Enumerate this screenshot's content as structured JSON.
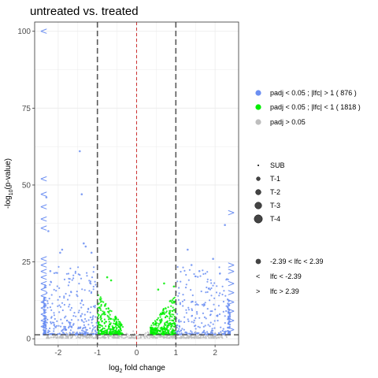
{
  "chart_data": {
    "type": "scatter",
    "title": "untreated vs. treated",
    "xlabel": "log",
    "xlabel_sub": "2",
    "xlabel_rest": " fold change",
    "ylabel": "-log",
    "ylabel_sub": "10",
    "ylabel_rest": "(p-value)",
    "xlim": [
      -2.6,
      2.6
    ],
    "ylim": [
      -2,
      103
    ],
    "x_ticks": [
      -2,
      -1,
      0,
      1,
      2
    ],
    "x_tick_labels": [
      "-2",
      "-1",
      "0",
      "1",
      "2"
    ],
    "y_ticks": [
      0,
      25,
      50,
      75,
      100
    ],
    "y_tick_labels": [
      "0",
      "25",
      "50",
      "75",
      "100"
    ],
    "grid": true,
    "vertical_lines": [
      {
        "x": -1,
        "style": "dashed",
        "color": "#595959"
      },
      {
        "x": 1,
        "style": "dashed",
        "color": "#595959"
      },
      {
        "x": 0,
        "style": "dashed",
        "color": "#cd3333"
      }
    ],
    "horizontal_lines": [
      {
        "y": 1.3,
        "style": "dashed",
        "color": "#595959"
      }
    ],
    "colors": {
      "sig_large": "#6c8ff2",
      "sig_small": "#00ee00",
      "nonsig": "#bebebe",
      "grid": "#ebebeb",
      "panel_border": "#333333",
      "axis_text": "#4d4d4d"
    },
    "series": [
      {
        "name": "padj < 0.05 ; |lfc| > 1  ( 876 )",
        "color": "#6c8ff2"
      },
      {
        "name": "padj < 0.05 ; |lfc| < 1  ( 1818 )",
        "color": "#00ee00"
      },
      {
        "name": "padj > 0.05",
        "color": "#bebebe"
      }
    ],
    "size_legend": [
      "SUB",
      "T-1",
      "T-2",
      "T-3",
      "T-4"
    ],
    "shape_legend": [
      "-2.39 < lfc < 2.39",
      "lfc <  -2.39",
      "lfc >  2.39"
    ],
    "shape_symbols": [
      "●",
      "<",
      ">"
    ],
    "highlight_points": [
      {
        "x": -1.45,
        "y": 61,
        "series": 0
      },
      {
        "x": -1.4,
        "y": 47,
        "series": 0
      },
      {
        "x": -2.3,
        "y": 46,
        "series": 0
      },
      {
        "x": -2.25,
        "y": 35,
        "series": 0
      },
      {
        "x": -1.95,
        "y": 28,
        "series": 0
      },
      {
        "x": -1.9,
        "y": 29,
        "series": 0
      },
      {
        "x": -1.35,
        "y": 31,
        "series": 0
      },
      {
        "x": -1.3,
        "y": 30,
        "series": 0
      },
      {
        "x": -1.15,
        "y": 28,
        "series": 0
      },
      {
        "x": -2.2,
        "y": 22,
        "series": 0
      },
      {
        "x": 2.25,
        "y": 37,
        "series": 0
      },
      {
        "x": 1.3,
        "y": 29,
        "series": 0
      },
      {
        "x": 1.95,
        "y": 26,
        "series": 0
      },
      {
        "x": 1.4,
        "y": 24,
        "series": 0
      },
      {
        "x": 1.6,
        "y": 22,
        "series": 0
      },
      {
        "x": -0.75,
        "y": 20,
        "series": 1
      },
      {
        "x": -0.65,
        "y": 19,
        "series": 1
      },
      {
        "x": 0.7,
        "y": 18,
        "series": 1
      },
      {
        "x": 0.95,
        "y": 17,
        "series": 1
      },
      {
        "x": 0.55,
        "y": 16,
        "series": 1
      }
    ],
    "edge_markers": [
      {
        "x": -2.39,
        "y": 100,
        "symbol": "<"
      },
      {
        "x": -2.39,
        "y": 52,
        "symbol": "<"
      },
      {
        "x": -2.39,
        "y": 47,
        "symbol": "<"
      },
      {
        "x": -2.39,
        "y": 43,
        "symbol": "<"
      },
      {
        "x": -2.39,
        "y": 39,
        "symbol": "<"
      },
      {
        "x": -2.39,
        "y": 36,
        "symbol": "<"
      },
      {
        "x": -2.39,
        "y": 26,
        "symbol": "<"
      },
      {
        "x": -2.39,
        "y": 24,
        "symbol": "<"
      },
      {
        "x": -2.39,
        "y": 22,
        "symbol": "<"
      },
      {
        "x": -2.39,
        "y": 20,
        "symbol": "<"
      },
      {
        "x": -2.39,
        "y": 18,
        "symbol": "<"
      },
      {
        "x": -2.39,
        "y": 16,
        "symbol": "<"
      },
      {
        "x": -2.39,
        "y": 14,
        "symbol": "<"
      },
      {
        "x": -2.39,
        "y": 12,
        "symbol": "<"
      },
      {
        "x": -2.39,
        "y": 10,
        "symbol": "<"
      },
      {
        "x": -2.39,
        "y": 8,
        "symbol": "<"
      },
      {
        "x": -2.39,
        "y": 6,
        "symbol": "<"
      },
      {
        "x": -2.39,
        "y": 4,
        "symbol": "<"
      },
      {
        "x": 2.39,
        "y": 41,
        "symbol": ">"
      },
      {
        "x": 2.39,
        "y": 24,
        "symbol": ">"
      },
      {
        "x": 2.39,
        "y": 22,
        "symbol": ">"
      },
      {
        "x": 2.39,
        "y": 18,
        "symbol": ">"
      },
      {
        "x": 2.39,
        "y": 15,
        "symbol": ">"
      },
      {
        "x": 2.39,
        "y": 12,
        "symbol": ">"
      },
      {
        "x": 2.39,
        "y": 9,
        "symbol": ">"
      },
      {
        "x": 2.39,
        "y": 6,
        "symbol": ">"
      },
      {
        "x": 2.39,
        "y": 3,
        "symbol": ">"
      }
    ]
  }
}
